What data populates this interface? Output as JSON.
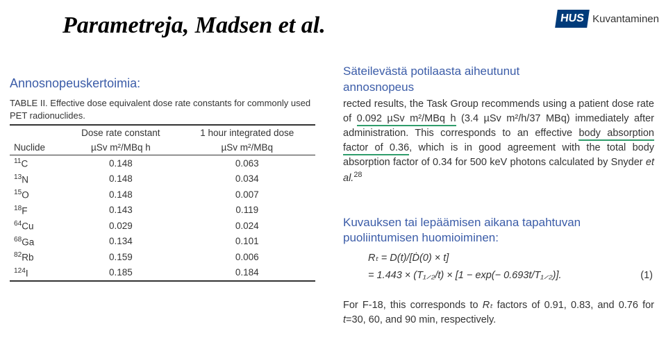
{
  "title": "Parametreja, Madsen et al.",
  "logo": {
    "box": "HUS",
    "text": "Kuvantaminen"
  },
  "labels": {
    "left": "Annosnopeuskertoimia:",
    "right_line1": "Säteilevästä potilaasta aiheutunut",
    "right_line2": "annosnopeus",
    "mid_line1": "Kuvauksen tai lepäämisen aikana tapahtuvan",
    "mid_line2": "puoliintumisen huomioiminen:"
  },
  "table": {
    "caption": "TABLE II. Effective dose equivalent dose rate constants for commonly used PET radionuclides.",
    "head": {
      "nuclide": "Nuclide",
      "col2_l1": "Dose rate constant",
      "col2_l2": "µSv m²/MBq h",
      "col3_l1": "1 hour integrated dose",
      "col3_l2": "µSv m²/MBq"
    },
    "rows": [
      {
        "n_pre": "11",
        "n_sym": "C",
        "c2": "0.148",
        "c3": "0.063"
      },
      {
        "n_pre": "13",
        "n_sym": "N",
        "c2": "0.148",
        "c3": "0.034"
      },
      {
        "n_pre": "15",
        "n_sym": "O",
        "c2": "0.148",
        "c3": "0.007"
      },
      {
        "n_pre": "18",
        "n_sym": "F",
        "c2": "0.143",
        "c3": "0.119"
      },
      {
        "n_pre": "64",
        "n_sym": "Cu",
        "c2": "0.029",
        "c3": "0.024"
      },
      {
        "n_pre": "68",
        "n_sym": "Ga",
        "c2": "0.134",
        "c3": "0.101"
      },
      {
        "n_pre": "82",
        "n_sym": "Rb",
        "c2": "0.159",
        "c3": "0.006"
      },
      {
        "n_pre": "124",
        "n_sym": "I",
        "c2": "0.185",
        "c3": "0.184"
      }
    ]
  },
  "para": {
    "p1a": "rected results, the Task Group recommends using a patient dose rate of ",
    "p1u1": "0.092 µSv m²/MBq h",
    "p1b": " (3.4 µSv m²/h/37 MBq) immediately after administration. This corresponds to an effective ",
    "p1u2": "body absorption factor of 0.36",
    "p1c": ", which is in good agreement with the total body absorption factor of 0.34 for 500 keV photons calculated by Snyder ",
    "p1d": "et al.",
    "p1ref": "28"
  },
  "eq": {
    "line1": "Rₜ = D(t)/[Ḋ(0) × t]",
    "line2": "= 1.443 × (T₁⸝₂/t) × [1 − exp(− 0.693t/T₁⸝₂)].",
    "num": "(1)"
  },
  "para2": {
    "a": "For F-18, this corresponds to ",
    "b": "Rₜ",
    "c": " factors of 0.91, 0.83, and 0.76 for ",
    "d": "t",
    "e": "=30, 60, and 90 min, respectively."
  }
}
